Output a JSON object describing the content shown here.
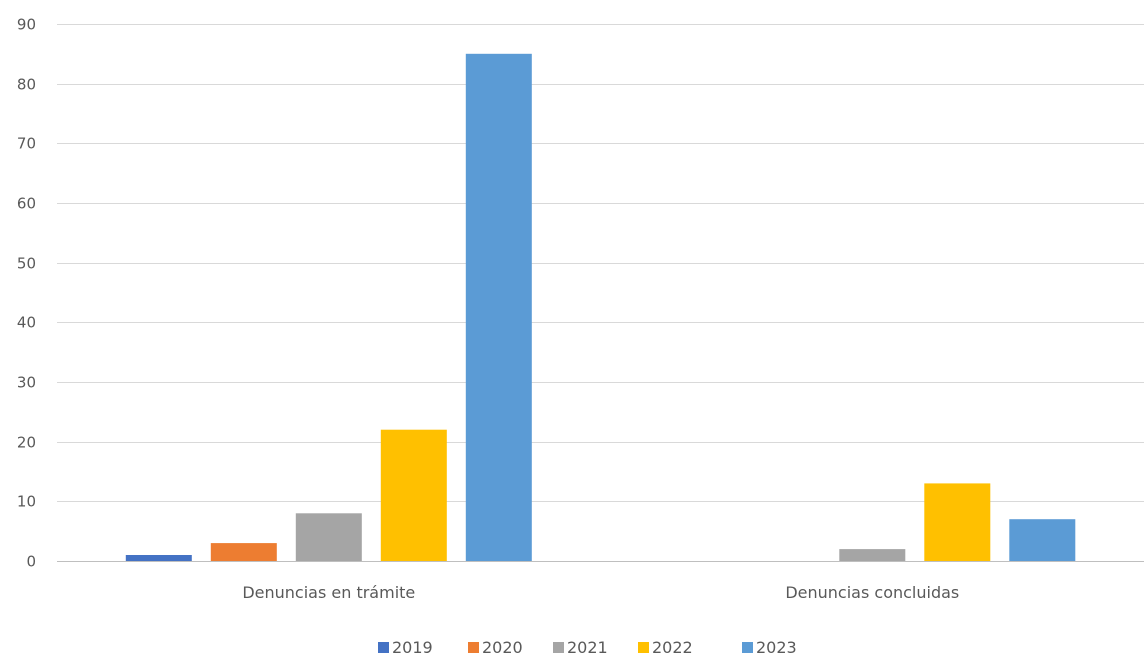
{
  "chart_data": {
    "type": "bar",
    "categories": [
      "Denuncias en trámite",
      "Denuncias concluidas"
    ],
    "series": [
      {
        "name": "2019",
        "color": "#4472c4",
        "values": [
          1,
          0
        ]
      },
      {
        "name": "2020",
        "color": "#ed7d31",
        "values": [
          3,
          0
        ]
      },
      {
        "name": "2021",
        "color": "#a5a5a5",
        "values": [
          8,
          2
        ]
      },
      {
        "name": "2022",
        "color": "#ffc000",
        "values": [
          22,
          13
        ]
      },
      {
        "name": "2023",
        "color": "#5b9bd5",
        "values": [
          85,
          7
        ]
      }
    ],
    "ylim": [
      0,
      90
    ],
    "yticks": [
      0,
      10,
      20,
      30,
      40,
      50,
      60,
      70,
      80,
      90
    ],
    "grid": true,
    "legend": "bottom"
  }
}
